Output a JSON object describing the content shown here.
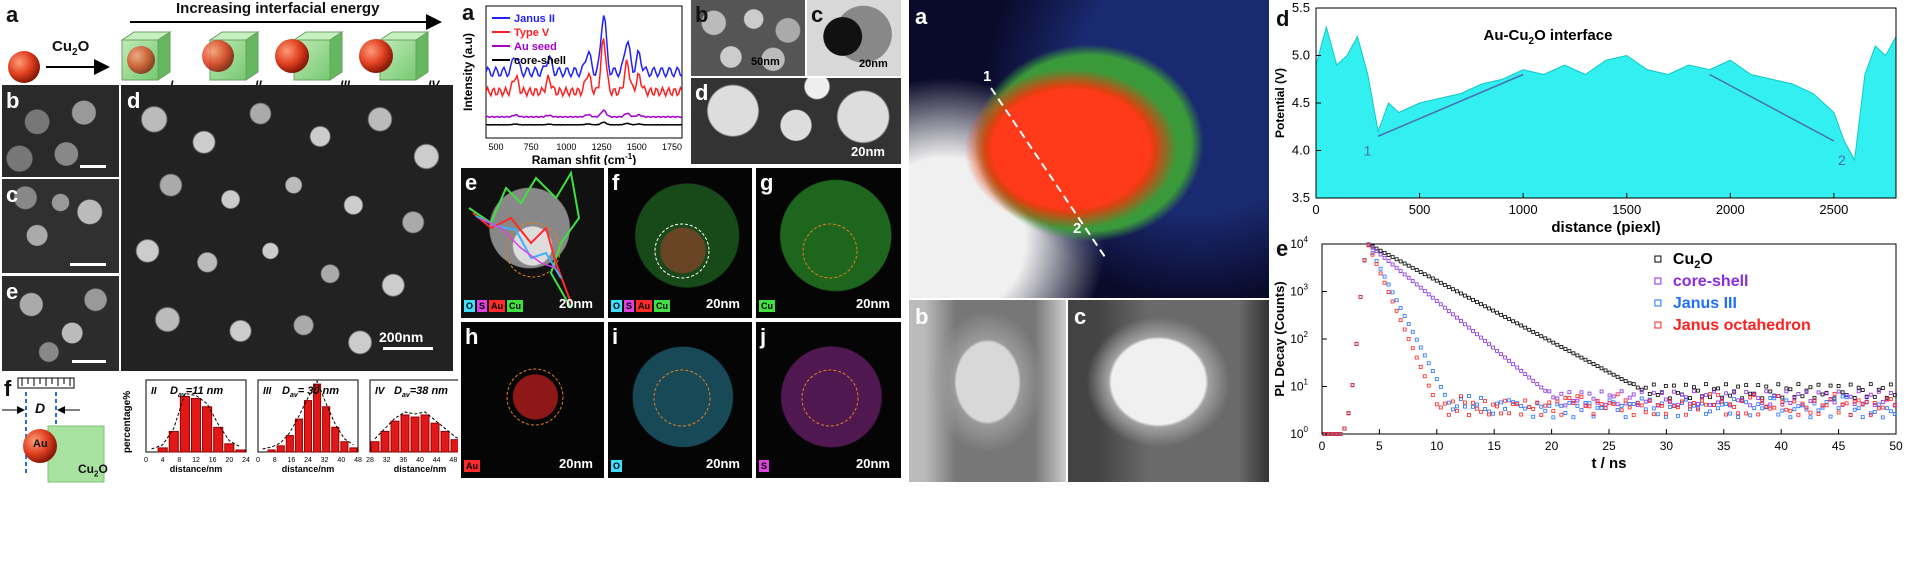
{
  "left": {
    "panel_labels": {
      "a": "a",
      "b": "b",
      "c": "c",
      "d": "d",
      "e": "e",
      "f": "f"
    },
    "scheme": {
      "cu2o_label": "Cu",
      "cu2o_sub": "2",
      "cu2o_tail": "O",
      "increasing_energy": "Increasing interfacial energy",
      "types": [
        "I",
        "II",
        "III",
        "IV"
      ]
    },
    "scalebar_d": "200nm",
    "diagram": {
      "au": "Au",
      "cu2o_label": "Cu",
      "cu2o_sub": "2",
      "cu2o_tail": "O",
      "D_label": "D"
    },
    "histograms": [
      {
        "id": "II",
        "title": "D",
        "sub": "av",
        "value": "=11 nm",
        "ylabel": "percentage%",
        "xlabel": "distance/nm",
        "ticks": [
          "0",
          "4",
          "8",
          "12",
          "16",
          "20",
          "24"
        ],
        "values": [
          0,
          2,
          10,
          27,
          26,
          22,
          12,
          4,
          1
        ]
      },
      {
        "id": "III",
        "title": "D",
        "sub": "av",
        "value": "= 30 nm",
        "xlabel": "distance/nm",
        "ticks": [
          "0",
          "8",
          "16",
          "24",
          "32",
          "40",
          "48"
        ],
        "values": [
          0,
          1,
          3,
          8,
          16,
          25,
          33,
          22,
          12,
          5,
          2
        ]
      },
      {
        "id": "IV",
        "title": "D",
        "sub": "av",
        "value": "=38 nm",
        "xlabel": "distance/nm",
        "ticks": [
          "28",
          "32",
          "36",
          "40",
          "44",
          "48",
          "52"
        ],
        "values": [
          5,
          10,
          15,
          18,
          17,
          18,
          14,
          10,
          6,
          3
        ]
      }
    ]
  },
  "middle": {
    "panel_labels": {
      "a": "a",
      "b": "b",
      "c": "c",
      "d": "d",
      "e": "e",
      "f": "f",
      "g": "g",
      "h": "h",
      "i": "i",
      "j": "j"
    },
    "raman": {
      "legend": [
        "Janus II",
        "Type V",
        "Au seed",
        "core-shell"
      ],
      "legend_colors": [
        "#1f1fff",
        "#ff1f1f",
        "#a000c8",
        "#000000"
      ],
      "ylabel": "Intensity (a.u)",
      "xlabel_main": "Raman shfit (cm",
      "xlabel_sup": "-1",
      "xlabel_tail": ")",
      "xticks": [
        "500",
        "750",
        "1000",
        "1250",
        "1500",
        "1750"
      ]
    },
    "scalebars": {
      "b": "50nm",
      "c": "20nm",
      "d": "20nm",
      "e": "20nm",
      "f": "20nm",
      "g": "20nm",
      "h": "20nm",
      "i": "20nm",
      "j": "20nm"
    },
    "chips": {
      "e": [
        {
          "t": "O",
          "c": "#3fe0ff"
        },
        {
          "t": "S",
          "c": "#e040e0"
        },
        {
          "t": "Au",
          "c": "#ff2a2a"
        },
        {
          "t": "Cu",
          "c": "#3fe03f"
        }
      ],
      "f": [
        {
          "t": "O",
          "c": "#3fe0ff"
        },
        {
          "t": "S",
          "c": "#e040e0"
        },
        {
          "t": "Au",
          "c": "#ff2a2a"
        },
        {
          "t": "Cu",
          "c": "#3fe03f"
        }
      ],
      "g": [
        {
          "t": "Cu",
          "c": "#3fe03f"
        }
      ],
      "h": [
        {
          "t": "Au",
          "c": "#ff2a2a"
        }
      ],
      "i": [
        {
          "t": "O",
          "c": "#3fe0ff"
        }
      ],
      "j": [
        {
          "t": "S",
          "c": "#e040e0"
        }
      ]
    }
  },
  "right": {
    "panel_labels": {
      "a": "a",
      "b": "b",
      "c": "c",
      "d": "d",
      "e": "e"
    },
    "map_points": [
      "1",
      "2"
    ],
    "chart_data": [
      {
        "type": "area",
        "title": "Au-Cu2O interface",
        "xlabel": "distance (piexl)",
        "ylabel": "Potential (V)",
        "xlim": [
          0,
          2800
        ],
        "ylim": [
          3.5,
          5.5
        ],
        "xticks": [
          "0",
          "500",
          "1000",
          "1500",
          "2000",
          "2500"
        ],
        "yticks": [
          "3.5",
          "4.0",
          "4.5",
          "5.0",
          "5.5"
        ],
        "x": [
          0,
          50,
          100,
          150,
          200,
          250,
          300,
          350,
          400,
          500,
          600,
          700,
          800,
          900,
          1000,
          1100,
          1200,
          1300,
          1400,
          1500,
          1600,
          1700,
          1800,
          1900,
          2000,
          2100,
          2200,
          2300,
          2400,
          2500,
          2550,
          2600,
          2650,
          2700,
          2750,
          2800
        ],
        "y": [
          4.9,
          5.3,
          4.9,
          5.0,
          5.2,
          4.8,
          4.2,
          4.5,
          4.4,
          4.5,
          4.55,
          4.6,
          4.7,
          4.75,
          4.85,
          4.8,
          4.9,
          4.8,
          4.95,
          5.0,
          4.85,
          4.8,
          4.9,
          4.85,
          4.95,
          4.8,
          4.75,
          4.7,
          4.6,
          4.4,
          4.1,
          3.9,
          4.8,
          5.1,
          5.0,
          5.2
        ],
        "annotations": [
          "1",
          "2"
        ],
        "color": "#33f0f0"
      },
      {
        "type": "scatter",
        "xlabel": "t / ns",
        "ylabel": "PL Decay (Counts)",
        "xlim": [
          0,
          50
        ],
        "ylim_log": [
          0,
          4
        ],
        "xticks": [
          "0",
          "5",
          "10",
          "15",
          "20",
          "25",
          "30",
          "35",
          "40",
          "45",
          "50"
        ],
        "yticks": [
          "10",
          "10",
          "10",
          "10",
          "10"
        ],
        "ytick_exp": [
          "0",
          "1",
          "2",
          "3",
          "4"
        ],
        "series": [
          {
            "name": "Cu",
            "sub": "2",
            "tail": "O",
            "color": "#000000",
            "tau": 7.0,
            "floor": 0.9
          },
          {
            "name": "core-shell",
            "color": "#8a2be2",
            "tau": 4.5,
            "floor": 0.75
          },
          {
            "name": "Janus III",
            "color": "#1f6fff",
            "tau": 1.9,
            "floor": 0.5
          },
          {
            "name": "Janus octahedron",
            "color": "#ff2020",
            "tau": 1.6,
            "floor": 0.55
          }
        ]
      }
    ]
  }
}
